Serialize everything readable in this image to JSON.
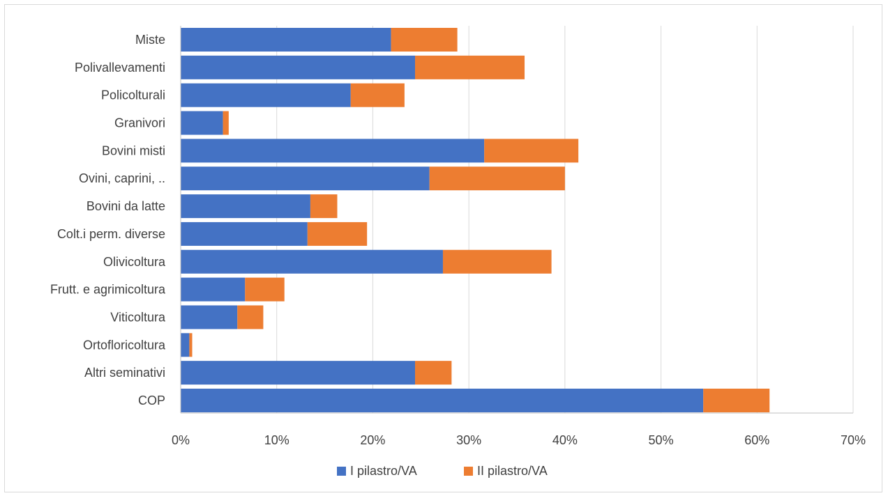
{
  "chart_data": {
    "type": "bar",
    "orientation": "horizontal",
    "stacked": true,
    "categories": [
      "Miste",
      "Polivallevamenti",
      "Policolturali",
      "Granivori",
      "Bovini misti",
      "Ovini, caprini, ..",
      "Bovini da latte",
      "Colt.i perm. diverse",
      "Olivicoltura",
      "Frutt. e agrimicoltura",
      "Viticoltura",
      "Ortofloricoltura",
      "Altri seminativi",
      "COP"
    ],
    "series": [
      {
        "name": "I pilastro/VA",
        "color": "#4472C4",
        "values": [
          21.9,
          24.4,
          17.7,
          4.4,
          31.6,
          25.9,
          13.5,
          13.2,
          27.3,
          6.7,
          5.9,
          0.9,
          24.4,
          54.4
        ]
      },
      {
        "name": "II pilastro/VA",
        "color": "#ED7D31",
        "values": [
          6.9,
          11.4,
          5.6,
          0.6,
          9.8,
          14.1,
          2.8,
          6.2,
          11.3,
          4.1,
          2.7,
          0.3,
          3.8,
          6.9
        ]
      }
    ],
    "x_ticks": [
      "0%",
      "10%",
      "20%",
      "30%",
      "40%",
      "50%",
      "60%",
      "70%"
    ],
    "xlim": [
      0,
      70
    ],
    "grid": true,
    "legend_position": "bottom"
  }
}
